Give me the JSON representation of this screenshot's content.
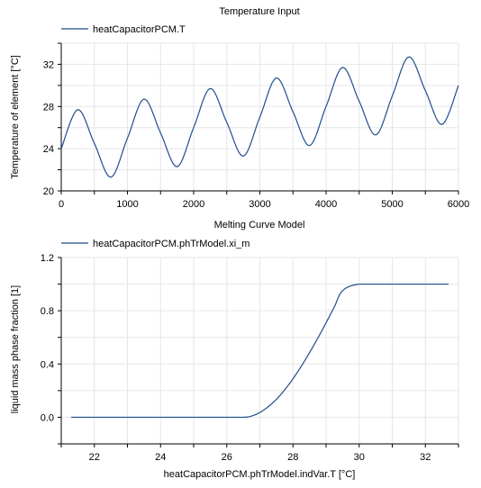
{
  "chart_data": [
    {
      "type": "line",
      "title": "Temperature Input",
      "xlabel": "",
      "ylabel": "Temperature of element  [°C]",
      "xlim": [
        0,
        6000
      ],
      "ylim": [
        20,
        34
      ],
      "xticks": [
        "0",
        "1000",
        "2000",
        "3000",
        "4000",
        "5000",
        "6000"
      ],
      "yticks": [
        "20",
        "24",
        "28",
        "32"
      ],
      "grid": true,
      "legend_position": "top-left",
      "series": [
        {
          "name": "heatCapacitorPCM.T",
          "color": "#1f4e8c",
          "x": [
            0,
            250,
            500,
            750,
            1000,
            1250,
            1500,
            1750,
            2000,
            2250,
            2500,
            2750,
            3000,
            3250,
            3500,
            3750,
            4000,
            4250,
            4500,
            4750,
            5000,
            5250,
            5500,
            5750,
            6000
          ],
          "y": [
            24.0,
            27.7,
            24.5,
            21.3,
            25.0,
            28.7,
            25.5,
            22.3,
            26.0,
            29.7,
            26.5,
            23.3,
            27.0,
            30.7,
            27.5,
            24.3,
            28.0,
            31.7,
            28.5,
            25.3,
            29.0,
            32.7,
            29.5,
            26.3,
            30.0
          ]
        }
      ]
    },
    {
      "type": "line",
      "title": "Melting Curve Model",
      "xlabel": "heatCapacitorPCM.phTrModel.indVar.T [°C]",
      "ylabel": "liquid mass phase fraction  [1]",
      "xlim": [
        21.0,
        33.0
      ],
      "ylim": [
        -0.2,
        1.2
      ],
      "xticks": [
        "22",
        "24",
        "26",
        "28",
        "30",
        "32"
      ],
      "yticks": [
        "0.0",
        "0.4",
        "0.8",
        "1.2"
      ],
      "grid": true,
      "legend_position": "top-left",
      "series": [
        {
          "name": "heatCapacitorPCM.phTrModel.xi_m",
          "color": "#1f4e8c",
          "x": [
            21.3,
            22.0,
            23.0,
            24.0,
            25.0,
            26.0,
            26.5,
            26.75,
            27.0,
            27.25,
            27.5,
            27.75,
            28.0,
            28.25,
            28.5,
            28.75,
            29.0,
            29.25,
            29.5,
            30.0,
            31.0,
            32.0,
            32.7
          ],
          "y": [
            0,
            0,
            0,
            0,
            0,
            0,
            0,
            0.009,
            0.036,
            0.079,
            0.135,
            0.206,
            0.289,
            0.383,
            0.485,
            0.594,
            0.71,
            0.829,
            0.951,
            1.0,
            1.0,
            1.0,
            1.0
          ]
        }
      ]
    }
  ]
}
